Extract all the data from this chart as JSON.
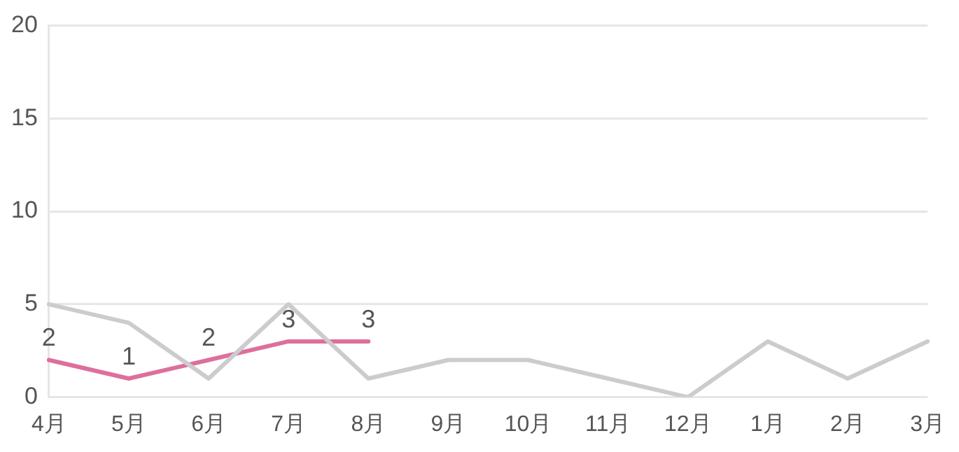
{
  "chart_data": {
    "type": "line",
    "categories": [
      "4月",
      "5月",
      "6月",
      "7月",
      "8月",
      "9月",
      "10月",
      "11月",
      "12月",
      "1月",
      "2月",
      "3月"
    ],
    "series": [
      {
        "color": "#cccccc",
        "values": [
          5,
          4,
          1,
          5,
          1,
          2,
          2,
          1,
          0,
          3,
          1,
          3
        ]
      },
      {
        "color": "#dd6f9c",
        "values": [
          2,
          1,
          2,
          3,
          3,
          null,
          null,
          null,
          null,
          null,
          null,
          null
        ],
        "value_labels": [
          "2",
          "1",
          "2",
          "3",
          "3",
          null,
          null,
          null,
          null,
          null,
          null,
          null
        ]
      }
    ],
    "ylim": [
      0,
      20
    ],
    "yticks": [
      0,
      5,
      10,
      15,
      20
    ],
    "grid": "y",
    "legend": false,
    "marker": "none",
    "line_style": "solid"
  }
}
